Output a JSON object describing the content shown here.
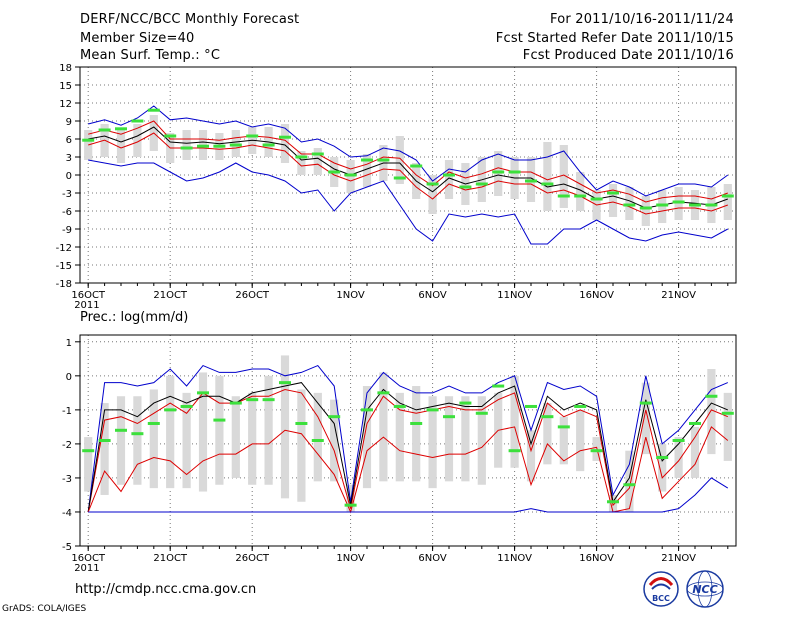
{
  "header": {
    "title": "DERF/NCC/BCC Monthly Forecast",
    "member_size": "Member Size=40",
    "variable": "Mean Surf. Temp.: °C",
    "period": "For 2011/10/16-2011/11/24",
    "start_ref": "Fcst Started Refer Date 2011/10/15",
    "produced": "Fcst Produced Date 2011/10/16"
  },
  "footer": {
    "url": "http://cmdp.ncc.cma.gov.cn",
    "credit": "GrADS: COLA/IGES",
    "logo_bcc": "BCC",
    "logo_ncc": "NCC"
  },
  "colors": {
    "extreme": "#0000cc",
    "spread": "#dd0000",
    "mean": "#000000",
    "box": "#d9d9d9",
    "green": "#3ce03c"
  },
  "chart_data": [
    {
      "type": "line",
      "title": "Mean Surf. Temp.: °C",
      "xlabel": "",
      "ylabel": "°C",
      "x": [
        "16OCT",
        "17OCT",
        "18OCT",
        "19OCT",
        "20OCT",
        "21OCT",
        "22OCT",
        "23OCT",
        "24OCT",
        "25OCT",
        "26OCT",
        "27OCT",
        "28OCT",
        "29OCT",
        "30OCT",
        "31OCT",
        "1NOV",
        "2NOV",
        "3NOV",
        "4NOV",
        "5NOV",
        "6NOV",
        "7NOV",
        "8NOV",
        "9NOV",
        "10NOV",
        "11NOV",
        "12NOV",
        "13NOV",
        "14NOV",
        "15NOV",
        "16NOV",
        "17NOV",
        "18NOV",
        "19NOV",
        "20NOV",
        "21NOV",
        "22NOV",
        "23NOV",
        "24NOV"
      ],
      "x_tick_labels": [
        "16OCT\n2011",
        "21OCT",
        "26OCT",
        "1NOV",
        "6NOV",
        "11NOV",
        "16NOV",
        "21NOV"
      ],
      "x_tick_index": [
        0,
        5,
        10,
        16,
        21,
        26,
        31,
        36
      ],
      "ylim": [
        -18,
        18
      ],
      "y_ticks": [
        -18,
        -15,
        -12,
        -9,
        -6,
        -3,
        0,
        3,
        6,
        9,
        12,
        15,
        18
      ],
      "grid": true,
      "series": [
        {
          "name": "max",
          "color": "#0000cc",
          "values": [
            8.5,
            9.2,
            8.3,
            9.5,
            11.5,
            9.2,
            9.5,
            9.0,
            8.5,
            9.0,
            8.0,
            8.5,
            7.8,
            5.5,
            6.0,
            4.8,
            3.0,
            3.2,
            4.5,
            4.0,
            2.5,
            -1.0,
            1.0,
            0.5,
            2.5,
            3.5,
            2.5,
            2.5,
            3.0,
            4.0,
            0.5,
            -2.5,
            -1.0,
            -2.0,
            -3.5,
            -2.5,
            -1.5,
            -1.5,
            -2.0,
            0.0
          ]
        },
        {
          "name": "upper",
          "color": "#dd0000",
          "values": [
            6.8,
            7.5,
            6.8,
            7.8,
            9.0,
            6.0,
            6.0,
            6.0,
            5.8,
            6.2,
            6.5,
            6.3,
            5.8,
            3.5,
            3.5,
            2.0,
            1.0,
            1.8,
            3.0,
            2.8,
            0.0,
            -1.8,
            0.5,
            -0.5,
            0.2,
            1.2,
            0.5,
            0.5,
            -0.8,
            0.0,
            -1.5,
            -3.0,
            -2.5,
            -3.2,
            -4.5,
            -3.8,
            -3.5,
            -3.5,
            -4.0,
            -3.0
          ]
        },
        {
          "name": "mean",
          "color": "#000000",
          "values": [
            6.0,
            6.5,
            5.5,
            6.5,
            8.0,
            5.5,
            5.3,
            5.5,
            5.2,
            5.5,
            5.8,
            5.5,
            5.0,
            2.5,
            2.8,
            1.0,
            0.0,
            1.0,
            2.0,
            2.0,
            -1.0,
            -2.8,
            -0.5,
            -1.5,
            -0.8,
            0.0,
            -0.5,
            -0.5,
            -2.0,
            -1.5,
            -2.5,
            -4.0,
            -3.5,
            -4.3,
            -5.5,
            -5.0,
            -4.5,
            -4.7,
            -5.0,
            -4.0
          ]
        },
        {
          "name": "lower",
          "color": "#dd0000",
          "values": [
            5.0,
            5.8,
            4.5,
            5.5,
            7.0,
            4.5,
            4.5,
            4.5,
            4.3,
            4.5,
            5.0,
            4.5,
            4.0,
            1.5,
            1.8,
            0.0,
            -1.0,
            0.0,
            1.0,
            0.8,
            -2.0,
            -4.0,
            -1.5,
            -2.5,
            -2.0,
            -1.0,
            -1.5,
            -1.5,
            -3.0,
            -2.5,
            -3.5,
            -5.0,
            -4.5,
            -5.3,
            -6.5,
            -6.0,
            -5.5,
            -5.5,
            -6.0,
            -5.0
          ]
        },
        {
          "name": "min",
          "color": "#0000cc",
          "values": [
            2.5,
            2.0,
            1.5,
            2.0,
            2.0,
            0.5,
            -1.0,
            -0.5,
            0.5,
            2.0,
            0.5,
            0.0,
            -1.0,
            -3.0,
            -2.5,
            -6.0,
            -3.0,
            -2.0,
            -1.0,
            -5.0,
            -9.0,
            -11.0,
            -6.5,
            -7.0,
            -6.5,
            -7.0,
            -6.5,
            -11.5,
            -11.5,
            -9.0,
            -9.0,
            -7.5,
            -9.0,
            -10.5,
            -11.0,
            -10.0,
            -9.5,
            -10.0,
            -10.5,
            -9.0
          ]
        },
        {
          "name": "observed",
          "color": "#3ce03c",
          "values": [
            5.8,
            7.5,
            7.7,
            9.0,
            10.8,
            6.5,
            4.5,
            4.8,
            4.8,
            5.0,
            6.5,
            5.0,
            6.3,
            3.0,
            3.5,
            0.5,
            0.0,
            2.5,
            2.5,
            -0.5,
            1.5,
            -1.5,
            0.0,
            -2.0,
            -1.5,
            0.5,
            0.5,
            -1.0,
            -1.5,
            -3.5,
            -3.5,
            -4.0,
            -3.0,
            -5.0,
            -5.5,
            -5.0,
            -4.5,
            -5.0,
            -5.0,
            -3.5
          ]
        }
      ],
      "boxes": {
        "name": "ensemble spread",
        "color": "#d9d9d9",
        "low": [
          2.5,
          3.0,
          2.0,
          3.0,
          4.0,
          2.0,
          2.5,
          2.5,
          2.5,
          3.0,
          3.5,
          3.0,
          2.0,
          0.0,
          0.0,
          -2.0,
          -3.0,
          -2.0,
          -1.0,
          -1.5,
          -4.0,
          -6.5,
          -4.0,
          -5.0,
          -4.5,
          -3.5,
          -4.0,
          -4.5,
          -6.0,
          -5.5,
          -6.0,
          -7.5,
          -7.0,
          -7.5,
          -8.5,
          -8.0,
          -7.5,
          -7.5,
          -8.0,
          -7.5
        ],
        "high": [
          7.5,
          8.5,
          7.5,
          8.5,
          10.0,
          7.0,
          7.5,
          7.5,
          7.0,
          7.5,
          8.0,
          8.0,
          8.5,
          4.0,
          4.5,
          3.0,
          2.5,
          3.5,
          5.0,
          6.5,
          2.0,
          0.0,
          2.5,
          2.0,
          3.0,
          4.0,
          3.0,
          3.0,
          5.5,
          5.0,
          0.5,
          -2.5,
          -1.5,
          -2.0,
          -3.5,
          -2.5,
          -2.0,
          -2.5,
          -2.0,
          -1.5
        ]
      }
    },
    {
      "type": "line",
      "title": "Prec.: log(mm/d)",
      "xlabel": "",
      "ylabel": "log(mm/d)",
      "x": [
        "16OCT",
        "17OCT",
        "18OCT",
        "19OCT",
        "20OCT",
        "21OCT",
        "22OCT",
        "23OCT",
        "24OCT",
        "25OCT",
        "26OCT",
        "27OCT",
        "28OCT",
        "29OCT",
        "30OCT",
        "31OCT",
        "1NOV",
        "2NOV",
        "3NOV",
        "4NOV",
        "5NOV",
        "6NOV",
        "7NOV",
        "8NOV",
        "9NOV",
        "10NOV",
        "11NOV",
        "12NOV",
        "13NOV",
        "14NOV",
        "15NOV",
        "16NOV",
        "17NOV",
        "18NOV",
        "19NOV",
        "20NOV",
        "21NOV",
        "22NOV",
        "23NOV",
        "24NOV"
      ],
      "x_tick_labels": [
        "16OCT\n2011",
        "21OCT",
        "26OCT",
        "1NOV",
        "6NOV",
        "11NOV",
        "16NOV",
        "21NOV"
      ],
      "x_tick_index": [
        0,
        5,
        10,
        16,
        21,
        26,
        31,
        36
      ],
      "ylim": [
        -5,
        1.2
      ],
      "y_ticks": [
        -5,
        -4,
        -3,
        -2,
        -1,
        0,
        1
      ],
      "grid": true,
      "series": [
        {
          "name": "max",
          "color": "#0000cc",
          "values": [
            -4.0,
            -0.2,
            -0.2,
            -0.3,
            -0.2,
            0.2,
            -0.3,
            0.3,
            0.1,
            0.1,
            0.2,
            0.2,
            0.0,
            0.1,
            0.3,
            -0.3,
            -3.7,
            -0.5,
            0.1,
            -0.3,
            -0.5,
            -0.5,
            -0.3,
            -0.5,
            -0.5,
            -0.2,
            0.0,
            -1.6,
            -0.2,
            -0.4,
            -0.3,
            -0.6,
            -3.5,
            -2.6,
            0.0,
            -2.0,
            -1.6,
            -1.0,
            -0.4,
            -0.2
          ]
        },
        {
          "name": "upper",
          "color": "#dd0000",
          "values": [
            -4.0,
            -1.3,
            -1.2,
            -1.4,
            -1.1,
            -0.8,
            -1.1,
            -0.5,
            -0.8,
            -0.8,
            -0.6,
            -0.6,
            -0.4,
            -0.5,
            -1.2,
            -2.2,
            -3.9,
            -1.4,
            -0.6,
            -1.0,
            -1.1,
            -1.0,
            -0.9,
            -1.0,
            -1.0,
            -0.7,
            -0.5,
            -2.2,
            -0.8,
            -1.2,
            -1.0,
            -1.2,
            -3.8,
            -3.3,
            -1.0,
            -3.0,
            -2.5,
            -1.8,
            -1.0,
            -1.2
          ]
        },
        {
          "name": "mean",
          "color": "#000000",
          "values": [
            -4.0,
            -1.0,
            -1.0,
            -1.2,
            -0.8,
            -0.6,
            -0.8,
            -0.6,
            -0.6,
            -0.8,
            -0.5,
            -0.4,
            -0.3,
            -0.2,
            -0.8,
            -1.4,
            -3.8,
            -1.0,
            -0.4,
            -0.8,
            -1.0,
            -0.9,
            -0.8,
            -0.9,
            -0.9,
            -0.5,
            -0.3,
            -2.0,
            -0.6,
            -1.0,
            -0.8,
            -1.0,
            -3.7,
            -3.0,
            -0.7,
            -2.5,
            -2.0,
            -1.4,
            -0.8,
            -1.0
          ]
        },
        {
          "name": "lower",
          "color": "#dd0000",
          "values": [
            -4.0,
            -2.8,
            -3.4,
            -2.6,
            -2.4,
            -2.5,
            -2.9,
            -2.5,
            -2.3,
            -2.3,
            -2.0,
            -2.0,
            -1.6,
            -1.7,
            -2.3,
            -2.9,
            -4.0,
            -2.2,
            -1.8,
            -2.2,
            -2.3,
            -2.4,
            -2.3,
            -2.3,
            -2.1,
            -1.6,
            -1.5,
            -3.2,
            -2.0,
            -2.5,
            -2.2,
            -2.1,
            -4.0,
            -3.9,
            -1.8,
            -3.6,
            -3.1,
            -2.6,
            -1.5,
            -1.9
          ]
        },
        {
          "name": "min",
          "color": "#0000cc",
          "values": [
            -4.0,
            -4.0,
            -4.0,
            -4.0,
            -4.0,
            -4.0,
            -4.0,
            -4.0,
            -4.0,
            -4.0,
            -4.0,
            -4.0,
            -4.0,
            -4.0,
            -4.0,
            -4.0,
            -4.0,
            -4.0,
            -4.0,
            -4.0,
            -4.0,
            -4.0,
            -4.0,
            -4.0,
            -4.0,
            -4.0,
            -4.0,
            -3.9,
            -4.0,
            -4.0,
            -4.0,
            -4.0,
            -4.0,
            -4.0,
            -4.0,
            -4.0,
            -3.9,
            -3.5,
            -3.0,
            -3.3
          ]
        },
        {
          "name": "observed",
          "color": "#3ce03c",
          "values": [
            -2.2,
            -1.9,
            -1.6,
            -1.7,
            -1.4,
            -1.0,
            -0.9,
            -0.5,
            -1.3,
            -0.8,
            -0.7,
            -0.7,
            -0.2,
            -1.4,
            -1.9,
            -1.2,
            -3.8,
            -1.0,
            -0.5,
            -0.9,
            -1.4,
            -1.0,
            -1.2,
            -0.8,
            -1.1,
            -0.3,
            -2.2,
            -0.9,
            -1.2,
            -1.5,
            -0.9,
            -2.2,
            -3.7,
            -3.2,
            -0.8,
            -2.4,
            -1.9,
            -1.4,
            -0.6,
            -1.1
          ]
        }
      ],
      "boxes": {
        "name": "ensemble spread",
        "color": "#d9d9d9",
        "low": [
          -3.4,
          -3.5,
          -3.2,
          -3.2,
          -3.3,
          -3.3,
          -3.3,
          -3.4,
          -3.2,
          -3.0,
          -3.2,
          -3.2,
          -3.6,
          -3.7,
          -3.1,
          -3.1,
          -4.0,
          -3.3,
          -3.1,
          -3.1,
          -3.1,
          -3.3,
          -3.1,
          -3.1,
          -3.2,
          -2.7,
          -2.7,
          -3.1,
          -2.6,
          -2.6,
          -2.8,
          -2.5,
          -4.0,
          -4.0,
          -2.3,
          -3.4,
          -3.0,
          -3.0,
          -2.3,
          -2.5
        ],
        "high": [
          -1.8,
          -0.8,
          -0.6,
          -0.6,
          -0.4,
          0.0,
          -0.5,
          0.1,
          0.0,
          -0.6,
          -0.5,
          0.0,
          0.6,
          -0.4,
          -0.5,
          -0.7,
          -3.2,
          -0.3,
          0.1,
          -0.5,
          -0.3,
          -0.6,
          -0.6,
          -0.6,
          -0.6,
          -0.5,
          0.0,
          -1.6,
          -0.8,
          -1.2,
          -1.0,
          -1.8,
          -3.5,
          -2.2,
          -0.2,
          -2.0,
          -1.8,
          -1.5,
          0.2,
          -0.5
        ]
      }
    }
  ]
}
